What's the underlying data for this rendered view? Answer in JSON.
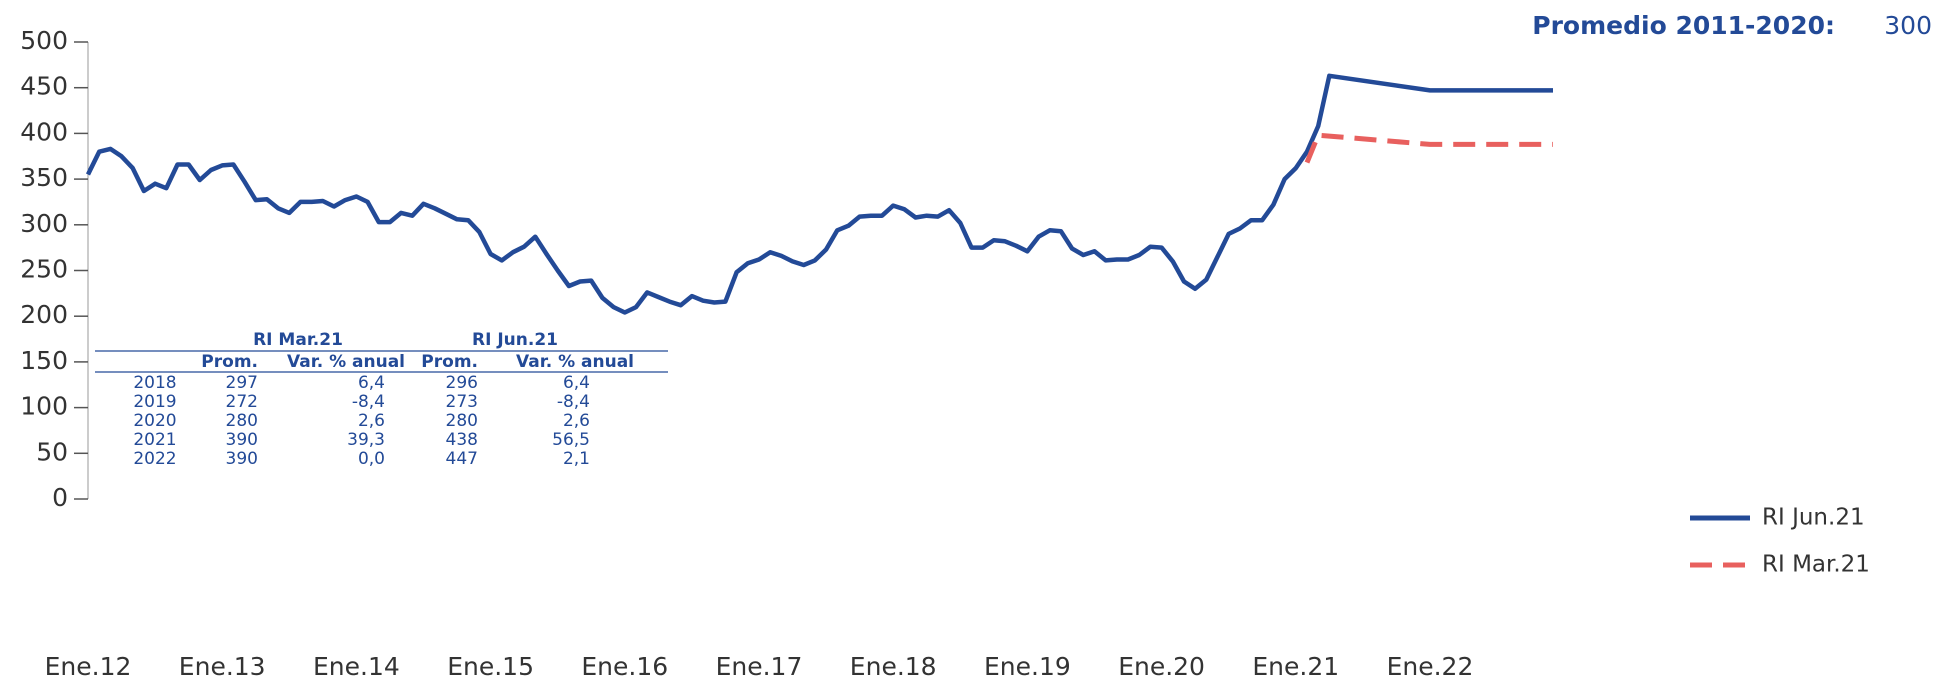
{
  "chart_data": {
    "type": "line",
    "annotation": {
      "label": "Promedio 2011-2020:",
      "value": 300
    },
    "x": [
      "2012-01",
      "2012-02",
      "2012-03",
      "2012-04",
      "2012-05",
      "2012-06",
      "2012-07",
      "2012-08",
      "2012-09",
      "2012-10",
      "2012-11",
      "2012-12",
      "2013-01",
      "2013-02",
      "2013-03",
      "2013-04",
      "2013-05",
      "2013-06",
      "2013-07",
      "2013-08",
      "2013-09",
      "2013-10",
      "2013-11",
      "2013-12",
      "2014-01",
      "2014-02",
      "2014-03",
      "2014-04",
      "2014-05",
      "2014-06",
      "2014-07",
      "2014-08",
      "2014-09",
      "2014-10",
      "2014-11",
      "2014-12",
      "2015-01",
      "2015-02",
      "2015-03",
      "2015-04",
      "2015-05",
      "2015-06",
      "2015-07",
      "2015-08",
      "2015-09",
      "2015-10",
      "2015-11",
      "2015-12",
      "2016-01",
      "2016-02",
      "2016-03",
      "2016-04",
      "2016-05",
      "2016-06",
      "2016-07",
      "2016-08",
      "2016-09",
      "2016-10",
      "2016-11",
      "2016-12",
      "2017-01",
      "2017-02",
      "2017-03",
      "2017-04",
      "2017-05",
      "2017-06",
      "2017-07",
      "2017-08",
      "2017-09",
      "2017-10",
      "2017-11",
      "2017-12",
      "2018-01",
      "2018-02",
      "2018-03",
      "2018-04",
      "2018-05",
      "2018-06",
      "2018-07",
      "2018-08",
      "2018-09",
      "2018-10",
      "2018-11",
      "2018-12",
      "2019-01",
      "2019-02",
      "2019-03",
      "2019-04",
      "2019-05",
      "2019-06",
      "2019-07",
      "2019-08",
      "2019-09",
      "2019-10",
      "2019-11",
      "2019-12",
      "2020-01",
      "2020-02",
      "2020-03",
      "2020-04",
      "2020-05",
      "2020-06",
      "2020-07",
      "2020-08",
      "2020-09",
      "2020-10",
      "2020-11",
      "2020-12",
      "2021-01",
      "2021-02",
      "2021-03",
      "2021-04",
      "2022-01",
      "2022-12"
    ],
    "series": [
      {
        "name": "RI Jun.21",
        "color": "#234a97",
        "dashed": false,
        "values": [
          355,
          380,
          383,
          375,
          362,
          337,
          345,
          340,
          366,
          366,
          349,
          360,
          365,
          366,
          347,
          327,
          328,
          318,
          313,
          325,
          325,
          326,
          320,
          327,
          331,
          325,
          303,
          303,
          313,
          310,
          323,
          318,
          312,
          306,
          305,
          292,
          268,
          261,
          270,
          276,
          287,
          268,
          250,
          233,
          238,
          239,
          220,
          210,
          204,
          210,
          226,
          221,
          216,
          212,
          222,
          217,
          215,
          216,
          248,
          258,
          262,
          270,
          266,
          260,
          256,
          261,
          273,
          294,
          299,
          309,
          310,
          310,
          321,
          317,
          308,
          310,
          309,
          316,
          302,
          275,
          275,
          283,
          282,
          277,
          271,
          287,
          294,
          293,
          274,
          267,
          271,
          261,
          262,
          262,
          267,
          276,
          275,
          260,
          238,
          230,
          240,
          265,
          290,
          296,
          305,
          305,
          322,
          350,
          362,
          380,
          408,
          463,
          447,
          447
        ]
      },
      {
        "name": "RI Mar.21",
        "color": "#e8605e",
        "dashed": true,
        "values": [
          null,
          null,
          null,
          null,
          null,
          null,
          null,
          null,
          null,
          null,
          null,
          null,
          null,
          null,
          null,
          null,
          null,
          null,
          null,
          null,
          null,
          null,
          null,
          null,
          null,
          null,
          null,
          null,
          null,
          null,
          null,
          null,
          null,
          null,
          null,
          null,
          null,
          null,
          null,
          null,
          null,
          null,
          null,
          null,
          null,
          null,
          null,
          null,
          null,
          null,
          null,
          null,
          null,
          null,
          null,
          null,
          null,
          null,
          null,
          null,
          null,
          null,
          null,
          null,
          null,
          null,
          null,
          null,
          null,
          null,
          null,
          null,
          null,
          null,
          null,
          null,
          null,
          null,
          null,
          null,
          null,
          null,
          null,
          null,
          null,
          null,
          null,
          null,
          null,
          null,
          null,
          null,
          null,
          null,
          null,
          null,
          null,
          null,
          null,
          null,
          null,
          null,
          null,
          null,
          null,
          null,
          null,
          null,
          null,
          368,
          398,
          397,
          388,
          388
        ]
      }
    ],
    "xlim": [
      "2012-01",
      "2022-12"
    ],
    "xticks": [
      {
        "value": "2012-01",
        "label": "Ene.12"
      },
      {
        "value": "2013-01",
        "label": "Ene.13"
      },
      {
        "value": "2014-01",
        "label": "Ene.14"
      },
      {
        "value": "2015-01",
        "label": "Ene.15"
      },
      {
        "value": "2016-01",
        "label": "Ene.16"
      },
      {
        "value": "2017-01",
        "label": "Ene.17"
      },
      {
        "value": "2018-01",
        "label": "Ene.18"
      },
      {
        "value": "2019-01",
        "label": "Ene.19"
      },
      {
        "value": "2020-01",
        "label": "Ene.20"
      },
      {
        "value": "2021-01",
        "label": "Ene.21"
      },
      {
        "value": "2022-01",
        "label": "Ene.22"
      }
    ],
    "ylim": [
      0,
      500
    ],
    "yticks": [
      0,
      50,
      100,
      150,
      200,
      250,
      300,
      350,
      400,
      450,
      500
    ],
    "legend": "lower right",
    "table": {
      "groups": [
        "RI Mar.21",
        "RI Jun.21"
      ],
      "header": [
        "Prom.",
        "Var. % anual",
        "Prom.",
        "Var. % anual"
      ],
      "rows": [
        [
          "2018",
          "297",
          "6,4",
          "296",
          "6,4"
        ],
        [
          "2019",
          "272",
          "-8,4",
          "273",
          "-8,4"
        ],
        [
          "2020",
          "280",
          "2,6",
          "280",
          "2,6"
        ],
        [
          "2021",
          "390",
          "39,3",
          "438",
          "56,5"
        ],
        [
          "2022",
          "390",
          "0,0",
          "447",
          "2,1"
        ]
      ]
    }
  }
}
